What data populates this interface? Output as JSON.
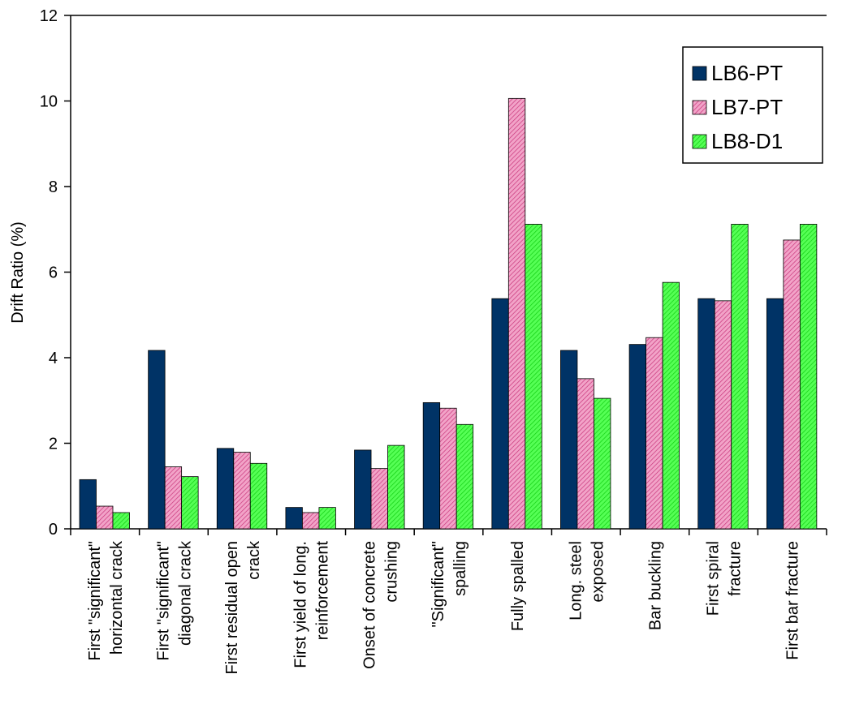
{
  "chart_data": {
    "type": "bar",
    "title": "",
    "xlabel": "",
    "ylabel": "Drift Ratio (%)",
    "ylim": [
      0,
      12
    ],
    "yticks": [
      0,
      2,
      4,
      6,
      8,
      10,
      12
    ],
    "grid": false,
    "legend_position": "top-right",
    "categories": [
      [
        "First \"significant\"",
        "horizontal crack"
      ],
      [
        "First \"significant\"",
        "diagonal crack"
      ],
      [
        "First residual open",
        "crack"
      ],
      [
        "First yield of long.",
        "reinforcement"
      ],
      [
        "Onset of concrete",
        "crushing"
      ],
      [
        "\"Significant\"",
        "spalling"
      ],
      [
        "Fully spalled"
      ],
      [
        "Long. steel",
        "exposed"
      ],
      [
        "Bar buckling"
      ],
      [
        "First spiral",
        "fracture"
      ],
      [
        "First bar fracture"
      ]
    ],
    "series": [
      {
        "name": "LB6-PT",
        "color": "#003366",
        "pattern": "solid",
        "values": [
          1.15,
          4.17,
          1.88,
          0.5,
          1.84,
          2.95,
          5.38,
          4.17,
          4.31,
          5.38,
          5.38
        ]
      },
      {
        "name": "LB7-PT",
        "color": "#e87ab0",
        "pattern": "hatch",
        "values": [
          0.53,
          1.45,
          1.79,
          0.38,
          1.41,
          2.82,
          10.06,
          3.51,
          4.47,
          5.33,
          6.75
        ]
      },
      {
        "name": "LB8-D1",
        "color": "#33ff33",
        "pattern": "hatch",
        "values": [
          0.38,
          1.22,
          1.53,
          0.5,
          1.95,
          2.44,
          7.12,
          3.05,
          5.76,
          7.12,
          7.12
        ]
      }
    ]
  }
}
